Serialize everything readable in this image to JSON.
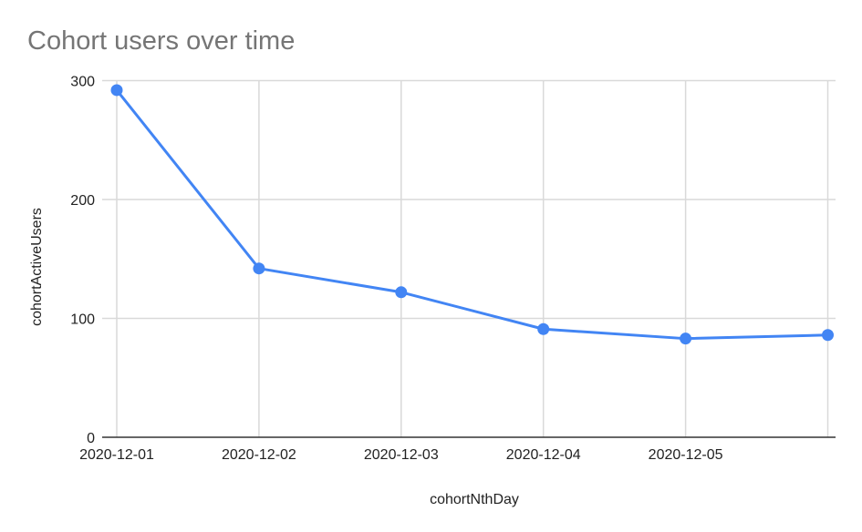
{
  "chart_data": {
    "type": "line",
    "title": "Cohort users over time",
    "xlabel": "cohortNthDay",
    "ylabel": "cohortActiveUsers",
    "categories": [
      "2020-12-01",
      "2020-12-02",
      "2020-12-03",
      "2020-12-04",
      "2020-12-05",
      ""
    ],
    "values": [
      292,
      142,
      122,
      91,
      83,
      86
    ],
    "ylim": [
      0,
      300
    ],
    "yticks": [
      "0",
      "100",
      "200",
      "300"
    ],
    "grid": true,
    "legend": "none",
    "colors": {
      "series": "#4285f4",
      "grid": "#d9d9d9",
      "axis": "#333333",
      "title": "#757575"
    }
  }
}
